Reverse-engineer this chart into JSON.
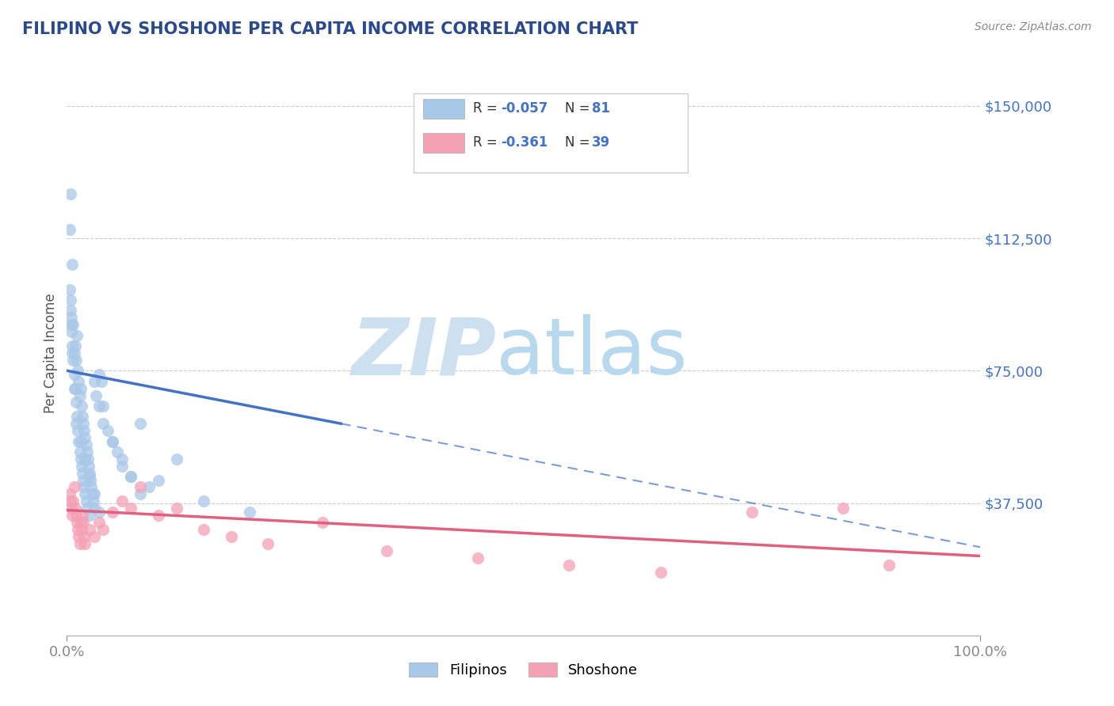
{
  "title": "FILIPINO VS SHOSHONE PER CAPITA INCOME CORRELATION CHART",
  "source_text": "Source: ZipAtlas.com",
  "ylabel": "Per Capita Income",
  "xlim": [
    0,
    100
  ],
  "ylim": [
    0,
    160000
  ],
  "yticks": [
    0,
    37500,
    75000,
    112500,
    150000
  ],
  "ytick_labels": [
    "",
    "$37,500",
    "$75,000",
    "$112,500",
    "$150,000"
  ],
  "background_color": "#ffffff",
  "filipino_color": "#a8c8e8",
  "shoshone_color": "#f4a0b5",
  "filipino_line_color": "#4472c4",
  "shoshone_line_color": "#e06080",
  "legend_r1": "R = -0.057",
  "legend_n1": "N = 81",
  "legend_r2": "R = -0.361",
  "legend_n2": "N = 39",
  "filipino_intercept": 75000,
  "filipino_slope": -500,
  "filipino_solid_end": 30,
  "shoshone_intercept": 35500,
  "shoshone_slope": -130,
  "shoshone_solid_end": 100,
  "filipino_scatter_x": [
    0.3,
    0.4,
    0.5,
    0.6,
    0.7,
    0.8,
    0.9,
    1.0,
    1.1,
    1.2,
    1.3,
    1.4,
    1.5,
    1.6,
    1.7,
    1.8,
    1.9,
    2.0,
    2.1,
    2.2,
    2.3,
    2.4,
    2.5,
    2.6,
    2.7,
    2.8,
    2.9,
    3.0,
    3.2,
    3.5,
    3.8,
    4.0,
    4.5,
    5.0,
    5.5,
    6.0,
    7.0,
    8.0,
    9.0,
    10.0,
    0.4,
    0.5,
    0.6,
    0.7,
    0.8,
    0.9,
    1.0,
    1.1,
    1.2,
    1.3,
    1.4,
    1.5,
    1.6,
    1.7,
    1.8,
    1.9,
    2.0,
    2.1,
    2.2,
    2.5,
    3.0,
    3.5,
    4.0,
    5.0,
    6.0,
    7.0,
    8.0,
    12.0,
    15.0,
    20.0,
    0.3,
    0.4,
    0.5,
    0.6,
    0.8,
    1.0,
    1.5,
    2.0,
    2.5,
    3.0,
    3.5
  ],
  "filipino_scatter_y": [
    115000,
    125000,
    90000,
    105000,
    88000,
    80000,
    82000,
    78000,
    85000,
    75000,
    72000,
    68000,
    70000,
    65000,
    62000,
    60000,
    58000,
    56000,
    54000,
    52000,
    50000,
    48000,
    46000,
    44000,
    42000,
    40000,
    38000,
    36000,
    68000,
    74000,
    72000,
    65000,
    58000,
    55000,
    52000,
    48000,
    45000,
    60000,
    42000,
    44000,
    95000,
    88000,
    82000,
    78000,
    74000,
    70000,
    66000,
    62000,
    58000,
    55000,
    52000,
    50000,
    48000,
    46000,
    44000,
    42000,
    40000,
    38000,
    36000,
    34000,
    72000,
    65000,
    60000,
    55000,
    50000,
    45000,
    40000,
    50000,
    38000,
    35000,
    98000,
    92000,
    86000,
    80000,
    70000,
    60000,
    55000,
    50000,
    45000,
    40000,
    35000
  ],
  "shoshone_scatter_x": [
    0.3,
    0.4,
    0.5,
    0.6,
    0.7,
    0.8,
    0.9,
    1.0,
    1.1,
    1.2,
    1.3,
    1.4,
    1.5,
    1.6,
    1.7,
    1.8,
    1.9,
    2.0,
    2.5,
    3.0,
    3.5,
    4.0,
    5.0,
    6.0,
    7.0,
    8.0,
    10.0,
    12.0,
    15.0,
    18.0,
    22.0,
    28.0,
    35.0,
    45.0,
    55.0,
    65.0,
    75.0,
    85.0,
    90.0
  ],
  "shoshone_scatter_y": [
    40000,
    38000,
    36000,
    34000,
    38000,
    42000,
    36000,
    34000,
    32000,
    30000,
    28000,
    26000,
    32000,
    30000,
    34000,
    32000,
    28000,
    26000,
    30000,
    28000,
    32000,
    30000,
    35000,
    38000,
    36000,
    42000,
    34000,
    36000,
    30000,
    28000,
    26000,
    32000,
    24000,
    22000,
    20000,
    18000,
    35000,
    36000,
    20000
  ]
}
